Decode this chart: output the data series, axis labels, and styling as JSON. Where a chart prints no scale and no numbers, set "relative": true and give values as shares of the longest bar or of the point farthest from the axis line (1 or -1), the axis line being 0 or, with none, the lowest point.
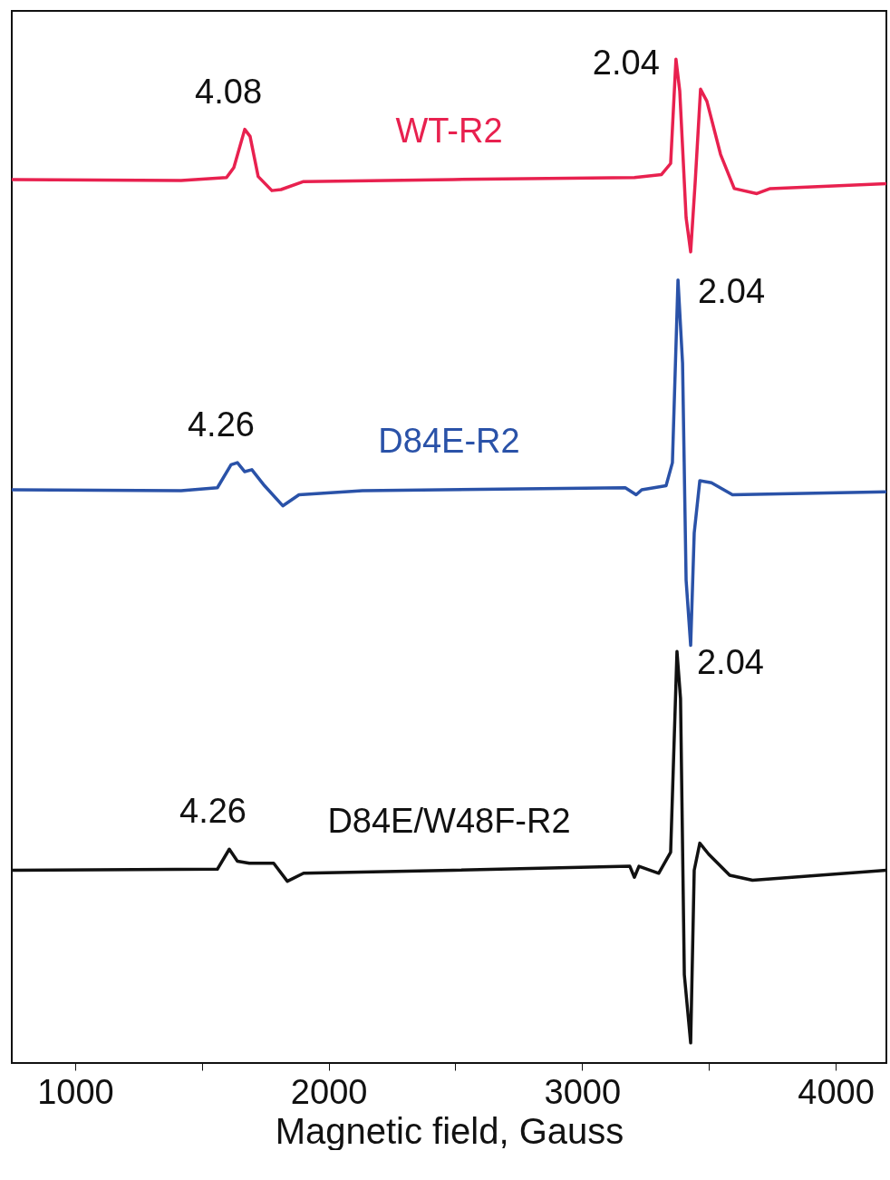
{
  "chart_data": {
    "type": "line",
    "relative": true,
    "xlabel": "Magnetic field, Gauss",
    "xlim": [
      750,
      4200
    ],
    "xticks": [
      1000,
      {
        "value": 1500,
        "label": null
      },
      2000,
      {
        "value": 2500,
        "label": null
      },
      3000,
      {
        "value": 3500,
        "label": null
      },
      4000
    ],
    "series": [
      {
        "name": "WT-R2",
        "color": "#e8214f",
        "x": [
          750,
          1418,
          1597,
          1626,
          1669,
          1690,
          1722,
          1776,
          1812,
          1901,
          2491,
          3206,
          3313,
          3349,
          3370,
          3385,
          3410,
          3428,
          3446,
          3467,
          3492,
          3546,
          3600,
          3689,
          3742,
          4200
        ],
        "values": [
          0.88,
          0.879,
          0.882,
          0.892,
          0.93,
          0.923,
          0.883,
          0.869,
          0.87,
          0.878,
          0.88,
          0.882,
          0.885,
          0.896,
          1.0,
          0.968,
          0.842,
          0.808,
          0.878,
          0.97,
          0.958,
          0.905,
          0.871,
          0.866,
          0.871,
          0.876
        ]
      },
      {
        "name": "D84E-R2",
        "color": "#2a52a8",
        "x": [
          750,
          1418,
          1561,
          1615,
          1640,
          1669,
          1697,
          1747,
          1819,
          1883,
          2133,
          3170,
          3213,
          3235,
          3331,
          3356,
          3378,
          3396,
          3410,
          3428,
          3442,
          3464,
          3510,
          3593,
          4200
        ],
        "values": [
          0.571,
          0.57,
          0.573,
          0.596,
          0.598,
          0.589,
          0.591,
          0.575,
          0.555,
          0.566,
          0.57,
          0.573,
          0.566,
          0.571,
          0.575,
          0.598,
          0.78,
          0.697,
          0.481,
          0.416,
          0.528,
          0.58,
          0.578,
          0.566,
          0.569
        ]
      },
      {
        "name": "D84E/W48F-R2",
        "color": "#111111",
        "x": [
          750,
          1561,
          1608,
          1640,
          1687,
          1783,
          1837,
          1901,
          2491,
          3188,
          3206,
          3224,
          3302,
          3349,
          3374,
          3388,
          3403,
          3428,
          3442,
          3464,
          3499,
          3582,
          3672,
          4200
        ],
        "values": [
          0.192,
          0.193,
          0.213,
          0.201,
          0.199,
          0.199,
          0.181,
          0.189,
          0.192,
          0.196,
          0.185,
          0.196,
          0.189,
          0.21,
          0.41,
          0.363,
          0.088,
          0.02,
          0.192,
          0.219,
          0.208,
          0.187,
          0.182,
          0.192
        ]
      }
    ],
    "annotations": [
      {
        "text": "4.08",
        "x": 1669,
        "y": 0.93
      },
      {
        "text": "2.04",
        "x": 3370,
        "y": 1.0
      },
      {
        "text": "4.26",
        "x": 1640,
        "y": 0.598
      },
      {
        "text": "2.04",
        "x": 3378,
        "y": 0.78
      },
      {
        "text": "4.26",
        "x": 1608,
        "y": 0.213
      },
      {
        "text": "2.04",
        "x": 3374,
        "y": 0.41
      }
    ]
  }
}
